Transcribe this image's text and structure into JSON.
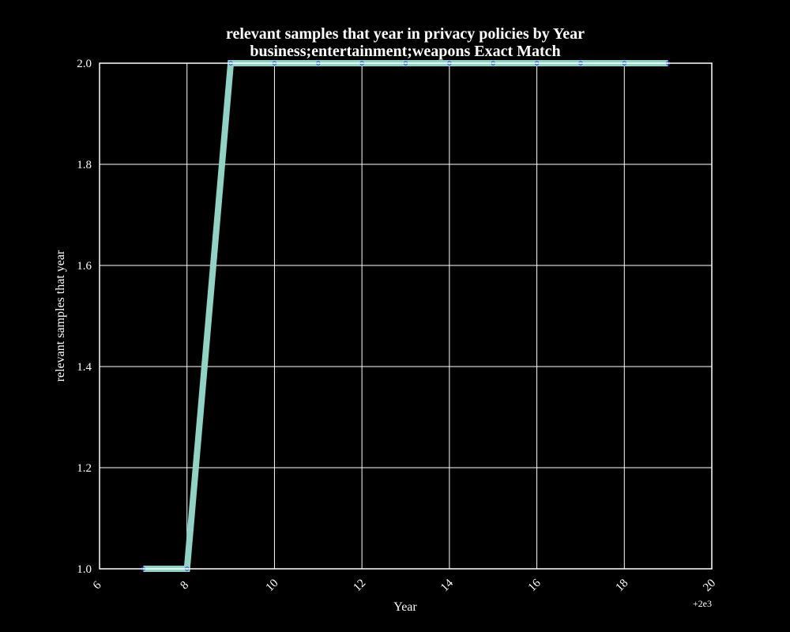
{
  "chart_data": {
    "type": "line",
    "title": "relevant samples that year in privacy policies by Year",
    "subtitle": "business;entertainment;weapons Exact Match",
    "xlabel": "Year",
    "ylabel": "relevant samples that year",
    "x_offset_label": "+2e3",
    "xlim": [
      6,
      20
    ],
    "ylim": [
      1.0,
      2.0
    ],
    "x_ticks": [
      6,
      8,
      10,
      12,
      14,
      16,
      18,
      20
    ],
    "x_tick_labels": [
      "6",
      "8",
      "10",
      "12",
      "14",
      "16",
      "18",
      "20"
    ],
    "y_ticks": [
      1.0,
      1.2,
      1.4,
      1.6,
      1.8,
      2.0
    ],
    "y_tick_labels": [
      "1.0",
      "1.2",
      "1.4",
      "1.6",
      "1.8",
      "2.0"
    ],
    "grid": true,
    "series": [
      {
        "x": [
          7,
          8,
          9,
          10,
          11,
          12,
          13,
          14,
          15,
          16,
          17,
          18,
          19
        ],
        "values": [
          1,
          1,
          2,
          2,
          2,
          2,
          2,
          2,
          2,
          2,
          2,
          2,
          2
        ],
        "color": "#8fd3c4",
        "marker_color": "#3333ff"
      }
    ],
    "background": "#000000",
    "axis_color": "#ffffff",
    "grid_color": "#ffffff"
  }
}
